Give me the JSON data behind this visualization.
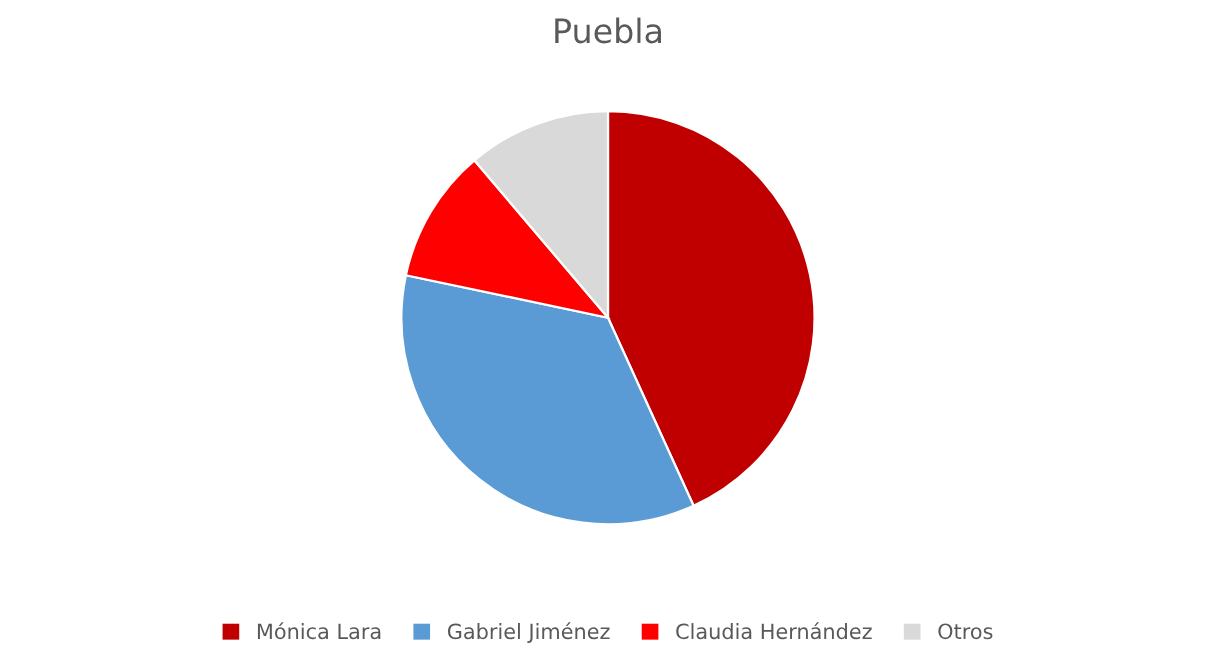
{
  "chart_data": {
    "type": "pie",
    "title": "Puebla",
    "categories": [
      "Mónica Lara",
      "Gabriel Jiménez",
      "Claudia Hernández",
      "Otros"
    ],
    "values": [
      43.2,
      35.1,
      10.5,
      11.2
    ],
    "colors": [
      "#c00000",
      "#5b9bd5",
      "#ff0000",
      "#d9d9d9"
    ],
    "legend": "bottom"
  }
}
